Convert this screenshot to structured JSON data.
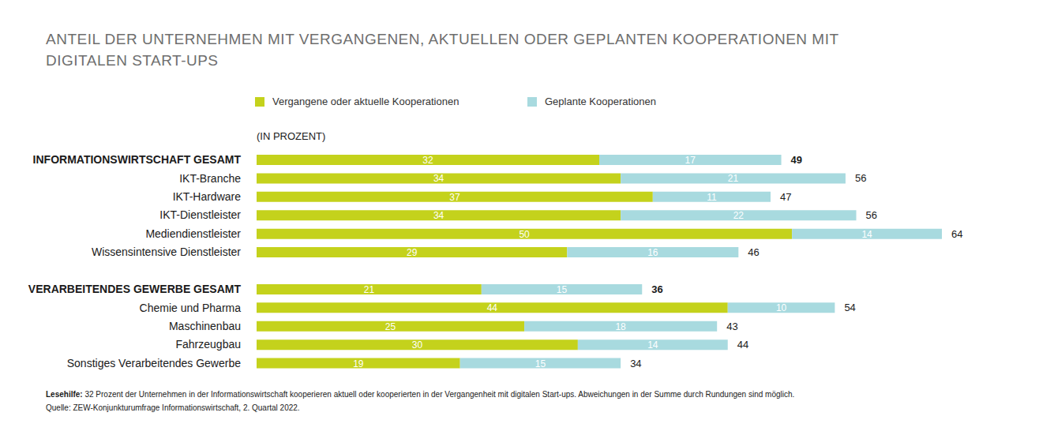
{
  "chart_data": {
    "type": "bar",
    "orientation": "horizontal",
    "stacked": true,
    "data_labels": true,
    "tick_labels": "y",
    "legend": "top",
    "title": "ANTEIL DER UNTERNEHMEN MIT VERGANGENEN, AKTUELLEN ODER GEPLANTEN KOOPERATIONEN MIT DIGITALEN START-UPS",
    "value_axis_label": "(IN PROZENT)",
    "categories": [
      "INFORMATIONSWIRTSCHAFT GESAMT",
      "IKT-Branche",
      "IKT-Hardware",
      "IKT-Dienstleister",
      "Mediendienstleister",
      "Wissensintensive Dienstleister",
      null,
      "VERARBEITENDES GEWERBE GESAMT",
      "Chemie und Pharma",
      "Maschinenbau",
      "Fahrzeugbau",
      "Sonstiges Verarbeitendes Gewerbe"
    ],
    "series": [
      {
        "name": "Vergangene oder aktuelle Kooperationen",
        "color": "#c4d21c",
        "values": [
          32,
          34,
          37,
          34,
          50,
          29,
          null,
          21,
          44,
          25,
          30,
          19
        ]
      },
      {
        "name": "Geplante Kooperationen",
        "color": "#a8dadf",
        "values": [
          17,
          21,
          11,
          22,
          14,
          16,
          null,
          15,
          10,
          18,
          14,
          15
        ]
      }
    ],
    "totals": [
      49,
      56,
      47,
      56,
      64,
      46,
      null,
      36,
      54,
      43,
      44,
      34
    ],
    "xlim": [
      0,
      64
    ],
    "note_label": "Lesehilfe:",
    "note": "32 Prozent der Unternehmen in der Informationswirtschaft kooperieren aktuell oder kooperierten in der Vergangenheit mit digitalen Start-ups. Abweichungen in der Summe durch Rundungen sind möglich.",
    "source": "Quelle: ZEW-Konjunkturumfrage Informationswirtschaft, 2. Quartal 2022."
  }
}
